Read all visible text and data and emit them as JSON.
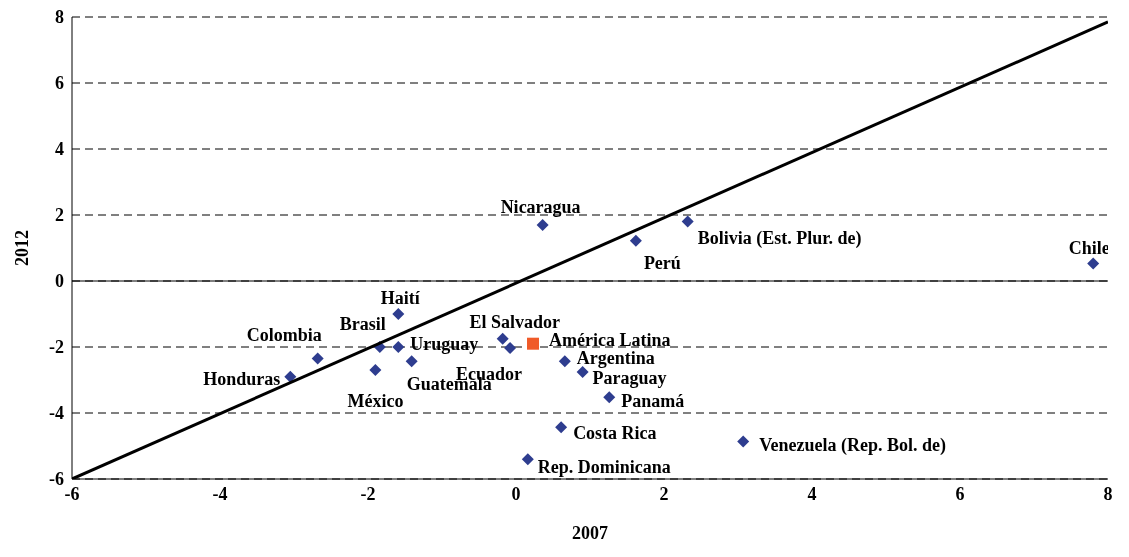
{
  "chart_data": {
    "type": "scatter",
    "xlabel": "2007",
    "ylabel": "2012",
    "xlim": [
      -6,
      8
    ],
    "xticks": [
      -6,
      -4,
      -2,
      0,
      2,
      4,
      6,
      8
    ],
    "ylim": [
      -6,
      8
    ],
    "yticks": [
      -6,
      -4,
      -2,
      0,
      2,
      4,
      6,
      8
    ],
    "grid": "y",
    "legend": false,
    "ref_lines": [
      {
        "axis": "y",
        "value": 0,
        "color": "#000000",
        "line_style": "solid"
      }
    ],
    "series": [
      {
        "type": "scatter",
        "color": "#2e3d8f",
        "marker": "diamond",
        "x": [
          0.36,
          2.32,
          1.62,
          7.8,
          -1.59,
          -1.84,
          -1.59,
          -2.68,
          -3.05,
          -1.9,
          -1.41,
          -0.18,
          -0.08,
          0.66,
          0.9,
          1.26,
          0.61,
          3.07,
          0.16
        ],
        "values": [
          1.7,
          1.8,
          1.22,
          0.53,
          -1.0,
          -2.0,
          -2.0,
          -2.35,
          -2.9,
          -2.7,
          -2.43,
          -1.75,
          -2.03,
          -2.43,
          -2.76,
          -3.52,
          -4.43,
          -4.86,
          -5.4
        ]
      },
      {
        "type": "scatter",
        "color": "#f05a28",
        "marker": "square",
        "x": [
          0.23
        ],
        "values": [
          -1.9
        ]
      },
      {
        "type": "line",
        "color": "#000000",
        "marker": "none",
        "line_style": "solid",
        "x": [
          -6,
          8
        ],
        "values": [
          -6,
          7.85
        ]
      }
    ],
    "annotations": [
      {
        "text": "Nicaragua",
        "x": 0.36,
        "y": 1.7
      },
      {
        "text": "Bolivia (Est. Plur. de)",
        "x": 2.32,
        "y": 1.8
      },
      {
        "text": "Perú",
        "x": 1.62,
        "y": 1.22
      },
      {
        "text": "Chile",
        "x": 7.8,
        "y": 0.53
      },
      {
        "text": "Haití",
        "x": -1.59,
        "y": -1.0
      },
      {
        "text": "Brasil",
        "x": -1.84,
        "y": -2.0
      },
      {
        "text": "Uruguay",
        "x": -1.59,
        "y": -2.0
      },
      {
        "text": "Colombia",
        "x": -2.68,
        "y": -2.35
      },
      {
        "text": "Honduras",
        "x": -3.05,
        "y": -2.9
      },
      {
        "text": "México",
        "x": -1.9,
        "y": -2.7
      },
      {
        "text": "Guatemala",
        "x": -1.41,
        "y": -2.43
      },
      {
        "text": "El Salvador",
        "x": -0.18,
        "y": -1.75
      },
      {
        "text": "Ecuador",
        "x": -0.08,
        "y": -2.03
      },
      {
        "text": "Argentina",
        "x": 0.66,
        "y": -2.43
      },
      {
        "text": "Paraguay",
        "x": 0.9,
        "y": -2.76
      },
      {
        "text": "Panamá",
        "x": 1.26,
        "y": -3.52
      },
      {
        "text": "Costa Rica",
        "x": 0.61,
        "y": -4.43
      },
      {
        "text": "Venezuela (Rep. Bol. de)",
        "x": 3.07,
        "y": -4.86
      },
      {
        "text": "Rep. Dominicana",
        "x": 0.16,
        "y": -5.4
      },
      {
        "text": "América Latina",
        "x": 0.23,
        "y": -1.9
      }
    ]
  }
}
